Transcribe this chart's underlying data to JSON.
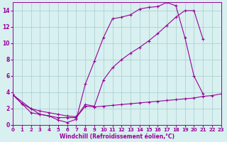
{
  "line1_x": [
    0,
    1,
    2,
    3,
    4,
    5,
    6,
    7,
    8,
    9,
    10,
    11,
    12,
    13,
    14,
    15,
    16,
    17,
    18,
    19,
    20,
    21
  ],
  "line1_y": [
    3.7,
    2.6,
    2.0,
    1.3,
    1.1,
    0.6,
    0.3,
    0.7,
    5.0,
    7.8,
    10.7,
    13.0,
    13.2,
    13.5,
    14.2,
    14.4,
    14.5,
    15.0,
    14.6,
    10.7,
    6.0,
    3.8
  ],
  "line2_x": [
    0,
    2,
    3,
    4,
    5,
    6,
    7,
    8,
    9,
    10,
    11,
    12,
    13,
    14,
    15,
    16,
    17,
    18,
    19,
    20,
    21
  ],
  "line2_y": [
    3.7,
    2.0,
    1.7,
    1.5,
    1.3,
    1.1,
    1.0,
    2.5,
    2.3,
    5.5,
    7.0,
    8.0,
    8.8,
    9.5,
    10.3,
    11.2,
    12.2,
    13.2,
    14.0,
    14.0,
    10.5
  ],
  "line3_x": [
    0,
    1,
    2,
    3,
    4,
    5,
    6,
    7,
    8,
    9,
    10,
    11,
    12,
    13,
    14,
    15,
    16,
    17,
    18,
    19,
    20,
    21,
    22,
    23
  ],
  "line3_y": [
    3.7,
    2.6,
    1.5,
    1.3,
    1.1,
    0.9,
    0.9,
    0.9,
    2.3,
    2.2,
    2.3,
    2.4,
    2.5,
    2.6,
    2.7,
    2.8,
    2.9,
    3.0,
    3.1,
    3.2,
    3.3,
    3.5,
    3.6,
    3.8
  ],
  "color": "#990099",
  "bg_color": "#d8f0f0",
  "grid_color": "#aacccc",
  "xlabel": "Windchill (Refroidissement éolien,°C)",
  "xlim": [
    0,
    23
  ],
  "ylim": [
    0,
    15
  ],
  "yticks": [
    0,
    2,
    4,
    6,
    8,
    10,
    12,
    14
  ],
  "xticks": [
    0,
    1,
    2,
    3,
    4,
    5,
    6,
    7,
    8,
    9,
    10,
    11,
    12,
    13,
    14,
    15,
    16,
    17,
    18,
    19,
    20,
    21,
    22,
    23
  ],
  "linewidth": 0.8,
  "markersize": 3.0,
  "tick_fontsize": 5.0,
  "xlabel_fontsize": 5.5
}
